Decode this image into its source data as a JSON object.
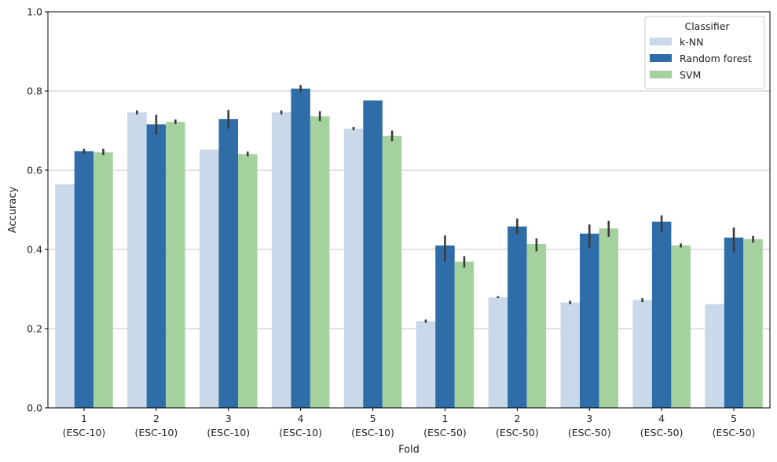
{
  "chart_data": {
    "type": "bar",
    "xlabel": "Fold",
    "ylabel": "Accuracy",
    "ylim": [
      0,
      1
    ],
    "yticks": [
      "0.0",
      "0.2",
      "0.4",
      "0.6",
      "0.8",
      "1.0"
    ],
    "grid": "horizontal",
    "legend_placement": "top-right",
    "legend_title": "Classifier",
    "categories": [
      [
        "1",
        "(ESC-10)"
      ],
      [
        "2",
        "(ESC-10)"
      ],
      [
        "3",
        "(ESC-10)"
      ],
      [
        "4",
        "(ESC-10)"
      ],
      [
        "5",
        "(ESC-10)"
      ],
      [
        "1",
        "(ESC-50)"
      ],
      [
        "2",
        "(ESC-50)"
      ],
      [
        "3",
        "(ESC-50)"
      ],
      [
        "4",
        "(ESC-50)"
      ],
      [
        "5",
        "(ESC-50)"
      ]
    ],
    "series": [
      {
        "name": "k-NN",
        "color": "#c9d9ea",
        "values": [
          0.565,
          0.746,
          0.652,
          0.746,
          0.705,
          0.219,
          0.279,
          0.266,
          0.272,
          0.262
        ],
        "errors": [
          null,
          [
            0.741,
            0.751
          ],
          null,
          [
            0.741,
            0.751
          ],
          [
            0.701,
            0.709
          ],
          [
            0.215,
            0.223
          ],
          [
            0.277,
            0.282
          ],
          [
            0.262,
            0.27
          ],
          [
            0.267,
            0.277
          ],
          null
        ]
      },
      {
        "name": "Random forest",
        "color": "#2e6da8",
        "values": [
          0.648,
          0.716,
          0.729,
          0.806,
          0.776,
          0.41,
          0.458,
          0.44,
          0.47,
          0.43
        ],
        "errors": [
          [
            0.642,
            0.654
          ],
          [
            0.69,
            0.74
          ],
          [
            0.705,
            0.752
          ],
          [
            0.797,
            0.815
          ],
          null,
          [
            0.37,
            0.435
          ],
          [
            0.438,
            0.478
          ],
          [
            0.405,
            0.463
          ],
          [
            0.445,
            0.486
          ],
          [
            0.392,
            0.455
          ]
        ]
      },
      {
        "name": "SVM",
        "color": "#a5d19f",
        "values": [
          0.645,
          0.722,
          0.641,
          0.736,
          0.687,
          0.369,
          0.414,
          0.453,
          0.41,
          0.426
        ],
        "errors": [
          [
            0.638,
            0.654
          ],
          [
            0.717,
            0.728
          ],
          [
            0.635,
            0.647
          ],
          [
            0.724,
            0.749
          ],
          [
            0.673,
            0.7
          ],
          [
            0.354,
            0.383
          ],
          [
            0.395,
            0.428
          ],
          [
            0.432,
            0.472
          ],
          [
            0.405,
            0.415
          ],
          [
            0.417,
            0.434
          ]
        ]
      }
    ]
  }
}
